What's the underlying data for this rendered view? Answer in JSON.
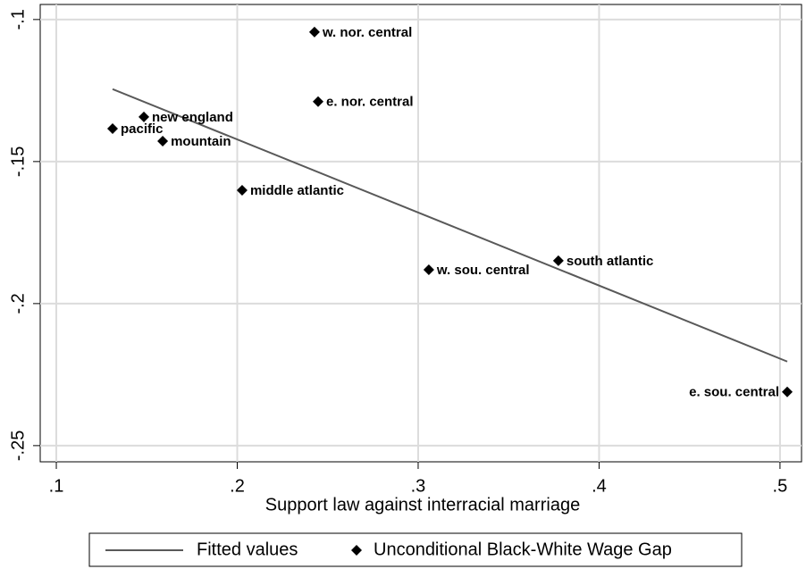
{
  "chart_data": {
    "type": "scatter",
    "x_label": "Support law against interracial marriage",
    "xlim": [
      0.0911,
      0.5119
    ],
    "ylim": [
      -0.2557,
      -0.0947
    ],
    "xticks": [
      {
        "value": 0.1,
        "label": ".1"
      },
      {
        "value": 0.2,
        "label": ".2"
      },
      {
        "value": 0.3,
        "label": ".3"
      },
      {
        "value": 0.4,
        "label": ".4"
      },
      {
        "value": 0.5,
        "label": ".5"
      }
    ],
    "yticks": [
      {
        "value": -0.1,
        "label": "-.1"
      },
      {
        "value": -0.15,
        "label": "-.15"
      },
      {
        "value": -0.2,
        "label": "-.2"
      },
      {
        "value": -0.25,
        "label": "-.25"
      }
    ],
    "grid": true,
    "series": [
      {
        "name": "Fitted values",
        "type": "line",
        "color": "#595959",
        "x": [
          0.1311,
          0.504
        ],
        "values": [
          -0.1245,
          -0.2204
        ]
      },
      {
        "name": "Unconditional Black-White Wage Gap",
        "type": "scatter",
        "color": "#000000",
        "labels": [
          "w. nor. central",
          "e. nor. central",
          "new england",
          "pacific",
          "mountain",
          "middle atlantic",
          "w. sou. central",
          "south atlantic",
          "e. sou. central"
        ],
        "x": [
          0.2427,
          0.2447,
          0.1484,
          0.1311,
          0.1588,
          0.2027,
          0.3059,
          0.3775,
          0.504
        ],
        "values": [
          -0.1044,
          -0.1289,
          -0.1343,
          -0.1384,
          -0.1428,
          -0.1601,
          -0.1881,
          -0.1849,
          -0.2311
        ]
      }
    ]
  }
}
